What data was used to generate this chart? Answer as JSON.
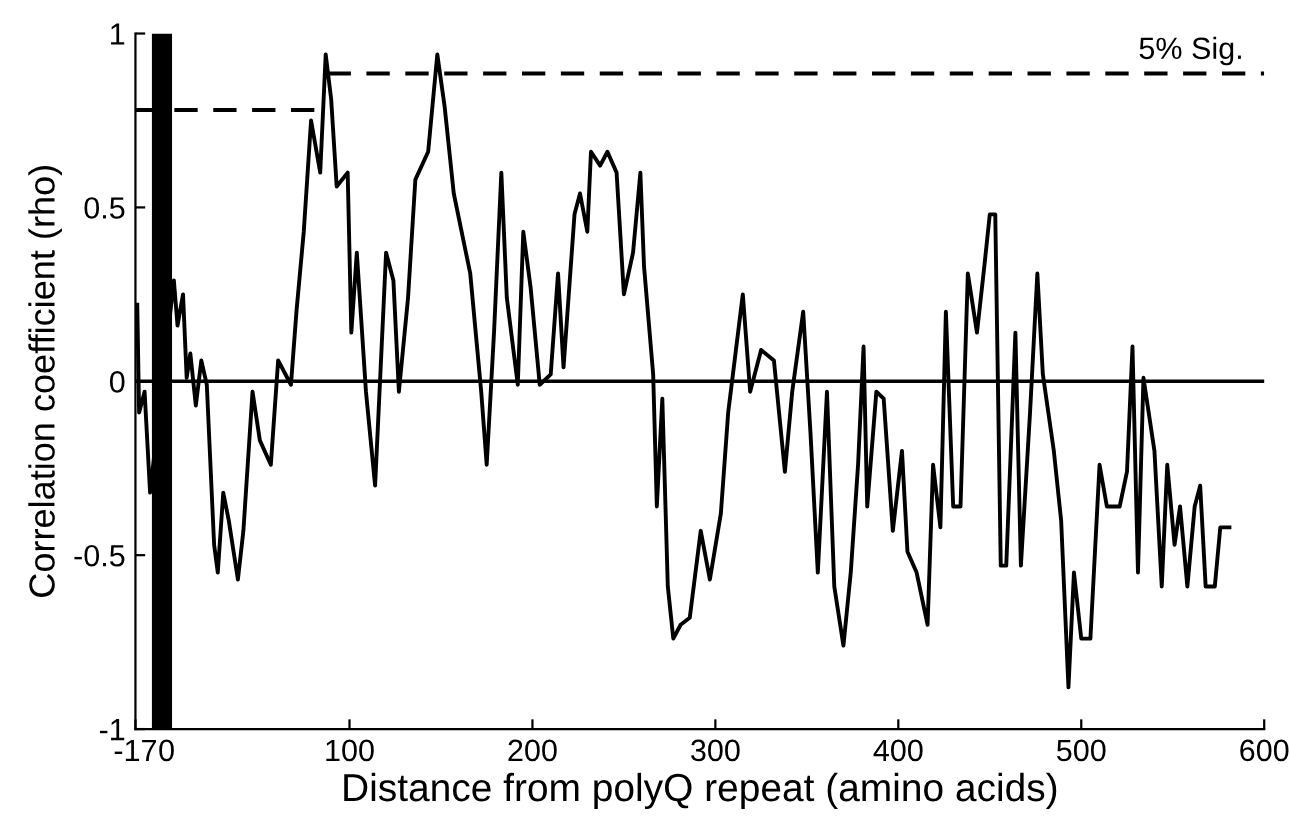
{
  "chart_data": {
    "type": "line",
    "xlabel": "Distance from polyQ repeat (amino acids)",
    "ylabel": "Correlation coefficient (rho)",
    "xlim": [
      -17,
      600
    ],
    "xticks": [
      -17,
      0,
      100,
      200,
      300,
      400,
      500,
      600
    ],
    "ylim": [
      -1,
      1
    ],
    "yticks": [
      -1,
      -0.5,
      0,
      0.5,
      1
    ],
    "grid": false,
    "legend": false,
    "series": [
      {
        "color": "#000000",
        "line_style": "solid",
        "x": [
          -16,
          -15,
          -12,
          -9,
          4,
          6,
          9,
          11,
          13,
          16,
          19,
          22,
          26,
          28,
          31,
          34,
          39,
          42,
          47,
          51,
          57,
          61,
          68,
          71,
          75,
          79,
          84,
          87,
          90,
          93,
          99,
          101,
          104,
          109,
          114,
          120,
          124,
          127,
          132,
          136,
          143,
          148,
          152,
          157,
          166,
          172,
          175,
          179,
          183,
          186,
          192,
          195,
          199,
          204,
          210,
          214,
          217,
          223,
          226,
          230,
          232,
          237,
          241,
          246,
          250,
          255,
          259,
          261,
          266,
          268,
          271,
          274,
          277,
          281,
          286,
          292,
          297,
          303,
          307,
          311,
          315,
          319,
          325,
          332,
          338,
          342,
          348,
          352,
          356,
          361,
          365,
          370,
          374,
          378,
          381,
          383,
          388,
          392,
          397,
          402,
          405,
          410,
          416,
          419,
          423,
          426,
          430,
          434,
          438,
          443,
          447,
          450,
          453,
          456,
          459,
          464,
          467,
          472,
          476,
          479,
          485,
          489,
          493,
          496,
          500,
          505,
          510,
          514,
          521,
          525,
          528,
          531,
          534,
          540,
          544,
          547,
          551,
          554,
          558,
          562,
          565,
          568,
          573,
          576,
          581
        ],
        "values": [
          0.22,
          -0.09,
          -0.03,
          -0.32,
          0.29,
          0.16,
          0.25,
          0.01,
          0.08,
          -0.07,
          0.06,
          -0.01,
          -0.47,
          -0.55,
          -0.32,
          -0.4,
          -0.57,
          -0.43,
          -0.03,
          -0.17,
          -0.24,
          0.06,
          -0.01,
          0.2,
          0.43,
          0.75,
          0.6,
          0.94,
          0.81,
          0.56,
          0.6,
          0.14,
          0.37,
          -0.03,
          -0.3,
          0.37,
          0.29,
          -0.03,
          0.24,
          0.58,
          0.66,
          0.94,
          0.79,
          0.54,
          0.31,
          -0.03,
          -0.24,
          0.14,
          0.6,
          0.24,
          -0.01,
          0.43,
          0.27,
          -0.01,
          0.02,
          0.31,
          0.04,
          0.48,
          0.54,
          0.43,
          0.66,
          0.62,
          0.66,
          0.6,
          0.25,
          0.37,
          0.6,
          0.33,
          0.02,
          -0.36,
          -0.05,
          -0.59,
          -0.74,
          -0.7,
          -0.68,
          -0.43,
          -0.57,
          -0.38,
          -0.09,
          0.08,
          0.25,
          -0.03,
          0.09,
          0.06,
          -0.26,
          -0.03,
          0.2,
          -0.15,
          -0.55,
          -0.03,
          -0.59,
          -0.76,
          -0.55,
          -0.24,
          0.1,
          -0.36,
          -0.03,
          -0.05,
          -0.43,
          -0.2,
          -0.49,
          -0.55,
          -0.7,
          -0.24,
          -0.42,
          0.2,
          -0.36,
          -0.36,
          0.31,
          0.14,
          0.33,
          0.48,
          0.48,
          -0.53,
          -0.53,
          0.14,
          -0.53,
          -0.09,
          0.31,
          0.02,
          -0.2,
          -0.4,
          -0.88,
          -0.55,
          -0.74,
          -0.74,
          -0.24,
          -0.36,
          -0.36,
          -0.26,
          0.1,
          -0.55,
          0.01,
          -0.2,
          -0.59,
          -0.24,
          -0.47,
          -0.36,
          -0.59,
          -0.36,
          -0.3,
          -0.59,
          -0.59,
          -0.42,
          -0.42
        ]
      },
      {
        "color": "#000000",
        "line_style": "dashed",
        "x": [
          -17,
          86
        ],
        "values": [
          0.78,
          0.78
        ]
      },
      {
        "color": "#000000",
        "line_style": "dashed",
        "x": [
          88,
          600
        ],
        "values": [
          0.885,
          0.885
        ]
      }
    ],
    "ref_lines": [
      {
        "axis": "y",
        "value": 0,
        "color": "#000000",
        "line_style": "solid"
      }
    ],
    "bands": [
      {
        "axis": "x",
        "from": -8,
        "to": 3,
        "color": "#000000"
      }
    ],
    "annotations": [
      {
        "text": "5% Sig.",
        "x": 560,
        "y": 0.885
      }
    ]
  }
}
